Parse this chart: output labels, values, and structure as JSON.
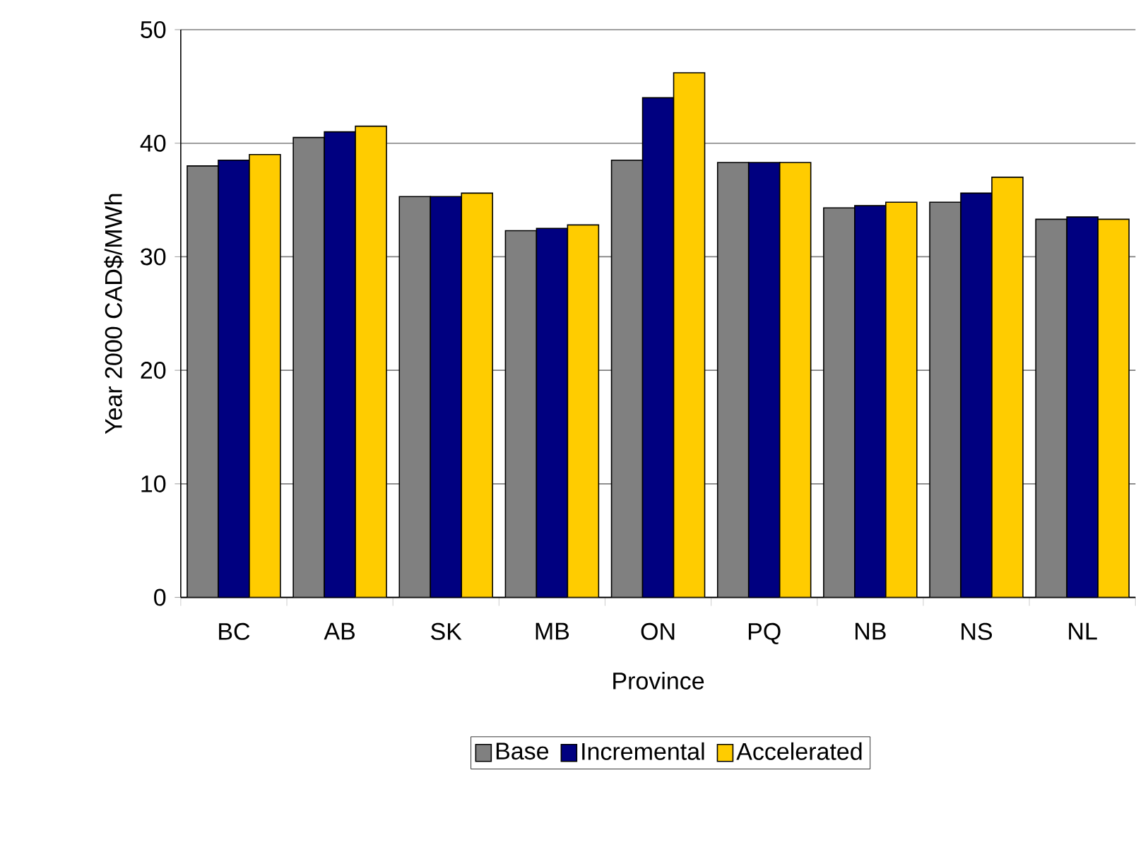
{
  "chart_data": {
    "type": "bar",
    "xlabel": "Province",
    "ylabel": "Year 2000 CAD$/MWh",
    "categories": [
      "BC",
      "AB",
      "SK",
      "MB",
      "ON",
      "PQ",
      "NB",
      "NS",
      "NL"
    ],
    "series": [
      {
        "name": "Base",
        "color": "#808080",
        "values": [
          38.0,
          40.5,
          35.3,
          32.3,
          38.5,
          38.3,
          34.3,
          34.8,
          33.3
        ]
      },
      {
        "name": "Incremental",
        "color": "#000080",
        "values": [
          38.5,
          41.0,
          35.3,
          32.5,
          44.0,
          38.3,
          34.5,
          35.6,
          33.5
        ]
      },
      {
        "name": "Accelerated",
        "color": "#ffcc00",
        "values": [
          39.0,
          41.5,
          35.6,
          32.8,
          46.2,
          38.3,
          34.8,
          37.0,
          33.3
        ]
      }
    ],
    "ylim": [
      0,
      50
    ],
    "yticks": [
      0,
      10,
      20,
      30,
      40,
      50
    ],
    "grid": "y",
    "legend": "bottom"
  }
}
